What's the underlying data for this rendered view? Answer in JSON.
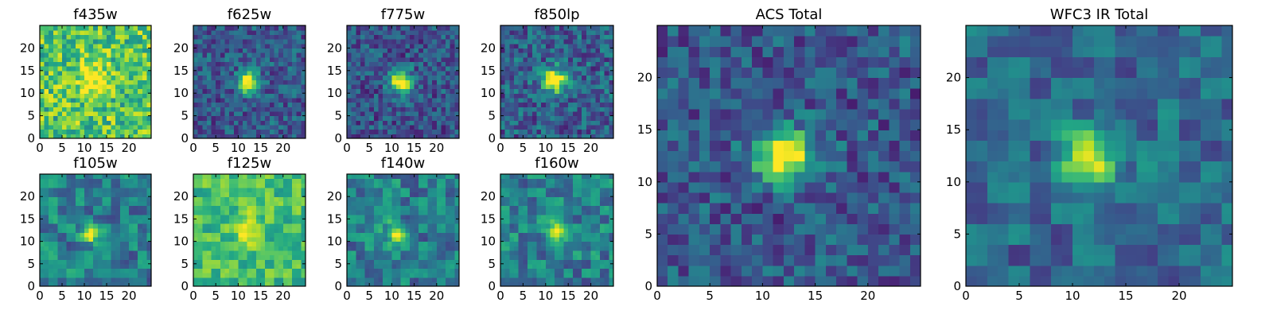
{
  "chart_data": {
    "type": "heatmap",
    "colormap": "viridis",
    "panels": [
      {
        "title": "f435w",
        "extent": [
          0,
          25,
          0,
          25
        ],
        "xticks": [
          0,
          5,
          10,
          15,
          20
        ],
        "yticks": [
          0,
          5,
          10,
          15,
          20
        ],
        "source": {
          "cx": 12,
          "cy": 13,
          "sigma": 2.4,
          "amplitude": 0.35
        },
        "background": {
          "level": 0.72,
          "noise": 0.24,
          "seed": 11,
          "block": 1
        }
      },
      {
        "title": "f625w",
        "extent": [
          0,
          25,
          0,
          25
        ],
        "xticks": [
          0,
          5,
          10,
          15,
          20
        ],
        "yticks": [
          0,
          5,
          10,
          15,
          20
        ],
        "source": {
          "cx": 12,
          "cy": 12.5,
          "sigma": 1.6,
          "amplitude": 0.8
        },
        "background": {
          "level": 0.28,
          "noise": 0.18,
          "seed": 23,
          "block": 1
        }
      },
      {
        "title": "f775w",
        "extent": [
          0,
          25,
          0,
          25
        ],
        "xticks": [
          0,
          5,
          10,
          15,
          20
        ],
        "yticks": [
          0,
          5,
          10,
          15,
          20
        ],
        "source": {
          "cx": 12,
          "cy": 12.5,
          "sigma": 1.8,
          "amplitude": 0.82
        },
        "background": {
          "level": 0.26,
          "noise": 0.18,
          "seed": 37,
          "block": 1
        }
      },
      {
        "title": "f850lp",
        "extent": [
          0,
          25,
          0,
          25
        ],
        "xticks": [
          0,
          5,
          10,
          15,
          20
        ],
        "yticks": [
          0,
          5,
          10,
          15,
          20
        ],
        "source": {
          "cx": 12,
          "cy": 13,
          "sigma": 1.8,
          "amplitude": 0.82
        },
        "background": {
          "level": 0.3,
          "noise": 0.2,
          "seed": 41,
          "block": 1
        }
      },
      {
        "title": "f105w",
        "extent": [
          0,
          25,
          0,
          25
        ],
        "xticks": [
          0,
          5,
          10,
          15,
          20
        ],
        "yticks": [
          0,
          5,
          10,
          15,
          20
        ],
        "source": {
          "cx": 12,
          "cy": 12,
          "sigma": 1.5,
          "amplitude": 0.6
        },
        "background": {
          "level": 0.42,
          "noise": 0.2,
          "seed": 53,
          "block": 2
        }
      },
      {
        "title": "f125w",
        "extent": [
          0,
          25,
          0,
          25
        ],
        "xticks": [
          0,
          5,
          10,
          15,
          20
        ],
        "yticks": [
          0,
          5,
          10,
          15,
          20
        ],
        "source": {
          "cx": 12,
          "cy": 13,
          "sigma": 2.2,
          "amplitude": 0.35
        },
        "background": {
          "level": 0.68,
          "noise": 0.16,
          "seed": 67,
          "block": 2
        }
      },
      {
        "title": "f140w",
        "extent": [
          0,
          25,
          0,
          25
        ],
        "xticks": [
          0,
          5,
          10,
          15,
          20
        ],
        "yticks": [
          0,
          5,
          10,
          15,
          20
        ],
        "source": {
          "cx": 11,
          "cy": 12,
          "sigma": 1.5,
          "amplitude": 0.6
        },
        "background": {
          "level": 0.42,
          "noise": 0.2,
          "seed": 79,
          "block": 2
        }
      },
      {
        "title": "f160w",
        "extent": [
          0,
          25,
          0,
          25
        ],
        "xticks": [
          0,
          5,
          10,
          15,
          20
        ],
        "yticks": [
          0,
          5,
          10,
          15,
          20
        ],
        "source": {
          "cx": 12,
          "cy": 12,
          "sigma": 1.5,
          "amplitude": 0.6
        },
        "background": {
          "level": 0.42,
          "noise": 0.2,
          "seed": 97,
          "block": 2
        }
      },
      {
        "title": "ACS Total",
        "extent": [
          0,
          25,
          0,
          25
        ],
        "xticks": [
          0,
          5,
          10,
          15,
          20
        ],
        "yticks": [
          0,
          5,
          10,
          15,
          20
        ],
        "source": {
          "cx": 12,
          "cy": 12.5,
          "sigma": 1.7,
          "amplitude": 0.85
        },
        "background": {
          "level": 0.28,
          "noise": 0.18,
          "seed": 101,
          "block": 1
        }
      },
      {
        "title": "WFC3 IR Total",
        "extent": [
          0,
          25,
          0,
          25
        ],
        "xticks": [
          0,
          5,
          10,
          15,
          20
        ],
        "yticks": [
          0,
          5,
          10,
          15,
          20
        ],
        "source": {
          "cx": 11.5,
          "cy": 12.5,
          "sigma": 2.0,
          "amplitude": 0.65
        },
        "background": {
          "level": 0.34,
          "noise": 0.16,
          "seed": 131,
          "block": 2
        }
      }
    ]
  }
}
